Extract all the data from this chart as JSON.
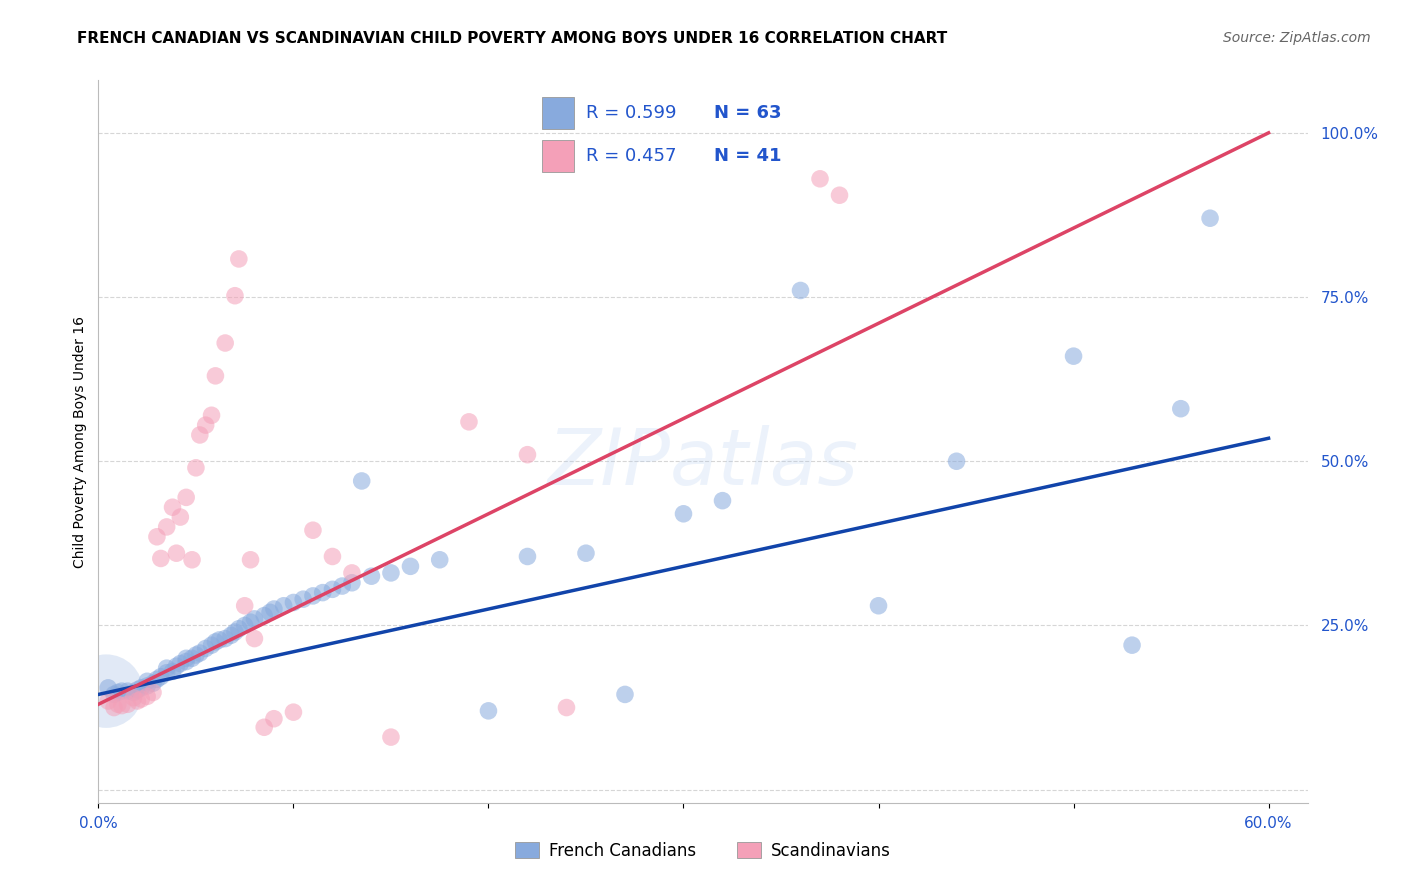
{
  "title": "FRENCH CANADIAN VS SCANDINAVIAN CHILD POVERTY AMONG BOYS UNDER 16 CORRELATION CHART",
  "source": "Source: ZipAtlas.com",
  "ylabel": "Child Poverty Among Boys Under 16",
  "xlim": [
    0.0,
    0.62
  ],
  "ylim": [
    -0.02,
    1.08
  ],
  "xticks": [
    0.0,
    0.6
  ],
  "xticklabels": [
    "0.0%",
    "60.0%"
  ],
  "yticks": [
    0.25,
    0.5,
    0.75,
    1.0
  ],
  "yticklabels": [
    "25.0%",
    "50.0%",
    "75.0%",
    "100.0%"
  ],
  "blue_color": "#88aadd",
  "pink_color": "#f4a0b8",
  "blue_line_color": "#1144aa",
  "pink_line_color": "#dd4466",
  "watermark": "ZIPatlas",
  "blue_scatter": [
    [
      0.005,
      0.155
    ],
    [
      0.008,
      0.145
    ],
    [
      0.01,
      0.148
    ],
    [
      0.012,
      0.15
    ],
    [
      0.015,
      0.15
    ],
    [
      0.018,
      0.148
    ],
    [
      0.02,
      0.152
    ],
    [
      0.022,
      0.155
    ],
    [
      0.025,
      0.158
    ],
    [
      0.025,
      0.165
    ],
    [
      0.028,
      0.162
    ],
    [
      0.03,
      0.168
    ],
    [
      0.032,
      0.172
    ],
    [
      0.035,
      0.178
    ],
    [
      0.035,
      0.185
    ],
    [
      0.038,
      0.18
    ],
    [
      0.04,
      0.188
    ],
    [
      0.042,
      0.192
    ],
    [
      0.045,
      0.195
    ],
    [
      0.045,
      0.2
    ],
    [
      0.048,
      0.2
    ],
    [
      0.05,
      0.205
    ],
    [
      0.052,
      0.208
    ],
    [
      0.055,
      0.215
    ],
    [
      0.058,
      0.22
    ],
    [
      0.06,
      0.225
    ],
    [
      0.062,
      0.228
    ],
    [
      0.065,
      0.23
    ],
    [
      0.068,
      0.235
    ],
    [
      0.07,
      0.24
    ],
    [
      0.072,
      0.245
    ],
    [
      0.075,
      0.25
    ],
    [
      0.078,
      0.255
    ],
    [
      0.08,
      0.26
    ],
    [
      0.085,
      0.265
    ],
    [
      0.088,
      0.27
    ],
    [
      0.09,
      0.275
    ],
    [
      0.095,
      0.28
    ],
    [
      0.1,
      0.285
    ],
    [
      0.105,
      0.29
    ],
    [
      0.11,
      0.295
    ],
    [
      0.115,
      0.3
    ],
    [
      0.12,
      0.305
    ],
    [
      0.125,
      0.31
    ],
    [
      0.13,
      0.315
    ],
    [
      0.135,
      0.47
    ],
    [
      0.14,
      0.325
    ],
    [
      0.15,
      0.33
    ],
    [
      0.16,
      0.34
    ],
    [
      0.175,
      0.35
    ],
    [
      0.2,
      0.12
    ],
    [
      0.22,
      0.355
    ],
    [
      0.25,
      0.36
    ],
    [
      0.27,
      0.145
    ],
    [
      0.3,
      0.42
    ],
    [
      0.32,
      0.44
    ],
    [
      0.36,
      0.76
    ],
    [
      0.4,
      0.28
    ],
    [
      0.44,
      0.5
    ],
    [
      0.5,
      0.66
    ],
    [
      0.53,
      0.22
    ],
    [
      0.555,
      0.58
    ],
    [
      0.57,
      0.87
    ]
  ],
  "pink_scatter": [
    [
      0.005,
      0.135
    ],
    [
      0.008,
      0.125
    ],
    [
      0.01,
      0.13
    ],
    [
      0.012,
      0.128
    ],
    [
      0.015,
      0.13
    ],
    [
      0.018,
      0.14
    ],
    [
      0.02,
      0.135
    ],
    [
      0.022,
      0.138
    ],
    [
      0.025,
      0.142
    ],
    [
      0.028,
      0.148
    ],
    [
      0.03,
      0.385
    ],
    [
      0.032,
      0.352
    ],
    [
      0.035,
      0.4
    ],
    [
      0.038,
      0.43
    ],
    [
      0.04,
      0.36
    ],
    [
      0.042,
      0.415
    ],
    [
      0.045,
      0.445
    ],
    [
      0.048,
      0.35
    ],
    [
      0.05,
      0.49
    ],
    [
      0.052,
      0.54
    ],
    [
      0.055,
      0.555
    ],
    [
      0.058,
      0.57
    ],
    [
      0.06,
      0.63
    ],
    [
      0.065,
      0.68
    ],
    [
      0.07,
      0.752
    ],
    [
      0.072,
      0.808
    ],
    [
      0.075,
      0.28
    ],
    [
      0.078,
      0.35
    ],
    [
      0.08,
      0.23
    ],
    [
      0.085,
      0.095
    ],
    [
      0.09,
      0.108
    ],
    [
      0.1,
      0.118
    ],
    [
      0.11,
      0.395
    ],
    [
      0.12,
      0.355
    ],
    [
      0.13,
      0.33
    ],
    [
      0.15,
      0.08
    ],
    [
      0.19,
      0.56
    ],
    [
      0.22,
      0.51
    ],
    [
      0.24,
      0.125
    ],
    [
      0.37,
      0.93
    ],
    [
      0.38,
      0.905
    ]
  ],
  "blue_line_x": [
    0.0,
    0.6
  ],
  "blue_line_y": [
    0.145,
    0.535
  ],
  "pink_line_x": [
    0.0,
    0.6
  ],
  "pink_line_y": [
    0.13,
    1.0
  ],
  "title_fontsize": 11,
  "axis_label_fontsize": 10,
  "tick_fontsize": 11,
  "source_fontsize": 10
}
